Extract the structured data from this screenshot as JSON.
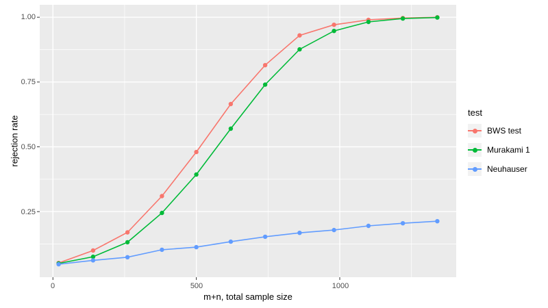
{
  "chart_data": {
    "type": "line",
    "title": "",
    "xlabel": "m+n, total sample size",
    "ylabel": "rejection rate",
    "x": [
      20,
      140,
      260,
      380,
      500,
      620,
      740,
      860,
      980,
      1100,
      1220,
      1340
    ],
    "series": [
      {
        "name": "BWS test",
        "color": "#F8766D",
        "values": [
          0.052,
          0.1,
          0.17,
          0.31,
          0.48,
          0.665,
          0.815,
          0.93,
          0.971,
          0.99,
          0.997,
          1.0
        ]
      },
      {
        "name": "Murakami 1",
        "color": "#00BA38",
        "values": [
          0.05,
          0.076,
          0.132,
          0.245,
          0.393,
          0.57,
          0.74,
          0.876,
          0.947,
          0.982,
          0.995,
          0.999
        ]
      },
      {
        "name": "Neuhauser",
        "color": "#619CFF",
        "values": [
          0.047,
          0.062,
          0.074,
          0.103,
          0.113,
          0.134,
          0.153,
          0.168,
          0.179,
          0.195,
          0.205,
          0.213
        ]
      }
    ],
    "x_ticks": [
      {
        "label": "0",
        "value": 0
      },
      {
        "label": "500",
        "value": 500
      },
      {
        "label": "1000",
        "value": 1000
      }
    ],
    "y_ticks": [
      {
        "label": "1.00",
        "value": 1.0
      },
      {
        "label": "0.75",
        "value": 0.75
      },
      {
        "label": "0.50",
        "value": 0.5
      },
      {
        "label": "0.25",
        "value": 0.25
      }
    ],
    "x_minor": [
      250,
      750,
      1250
    ],
    "y_minor": [
      0.125,
      0.375,
      0.625,
      0.875
    ],
    "xlim": [
      -46,
      1406
    ],
    "ylim": [
      -0.003,
      1.048
    ],
    "grid": true,
    "legend_position": "right",
    "colors": {
      "panel_bg": "#EBEBEB",
      "grid": "#FFFFFF",
      "tick_text": "#4D4D4D",
      "tick_mark": "#333333",
      "legend_key_bg": "#F2F2F2"
    }
  },
  "legend": {
    "title": "test"
  }
}
